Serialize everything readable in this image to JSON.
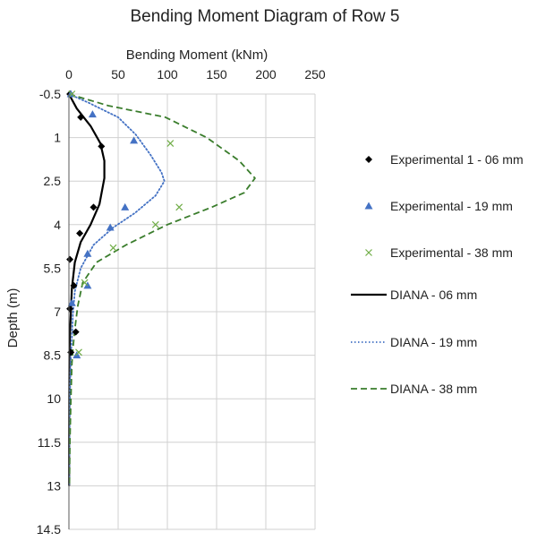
{
  "chart_data": {
    "type": "scatter",
    "title": "Bending Moment Diagram of Row 5",
    "xlabel": "Bending Moment (kNm)",
    "ylabel": "Depth (m)",
    "xlim": [
      0,
      250
    ],
    "ylim": [
      -0.5,
      14.5
    ],
    "y_inverted": true,
    "x_axis_position": "top",
    "x_ticks": [
      0,
      50,
      100,
      150,
      200,
      250
    ],
    "y_ticks": [
      -0.5,
      1,
      2.5,
      4,
      5.5,
      7,
      8.5,
      10,
      11.5,
      13,
      14.5
    ],
    "grid": true,
    "legend_position": "right",
    "series": [
      {
        "name": "Experimental 1 - 06 mm",
        "kind": "markers",
        "marker": "diamond",
        "color": "#000000",
        "points": [
          [
            1,
            -0.5
          ],
          [
            12,
            0.3
          ],
          [
            33,
            1.3
          ],
          [
            25,
            3.4
          ],
          [
            11,
            4.3
          ],
          [
            1,
            5.2
          ],
          [
            5,
            6.1
          ],
          [
            1,
            6.9
          ],
          [
            7,
            7.7
          ],
          [
            2,
            8.4
          ]
        ]
      },
      {
        "name": "Experimental - 19 mm",
        "kind": "markers",
        "marker": "triangle",
        "color": "#4472c4",
        "points": [
          [
            2,
            -0.5
          ],
          [
            24,
            0.2
          ],
          [
            66,
            1.1
          ],
          [
            57,
            3.4
          ],
          [
            42,
            4.1
          ],
          [
            19,
            5.0
          ],
          [
            19,
            6.1
          ],
          [
            3,
            6.7
          ],
          [
            8,
            8.5
          ]
        ]
      },
      {
        "name": "Experimental - 38 mm",
        "kind": "markers",
        "marker": "cross",
        "color": "#70ad47",
        "points": [
          [
            3,
            -0.5
          ],
          [
            103,
            1.2
          ],
          [
            112,
            3.4
          ],
          [
            88,
            4.0
          ],
          [
            45,
            4.8
          ],
          [
            16,
            6.0
          ],
          [
            10,
            8.4
          ]
        ]
      },
      {
        "name": "DIANA - 06 mm",
        "kind": "line",
        "dash": "solid",
        "color": "#000000",
        "points": [
          [
            0,
            -0.5
          ],
          [
            8,
            0.0
          ],
          [
            22,
            0.6
          ],
          [
            32,
            1.2
          ],
          [
            36,
            1.8
          ],
          [
            36,
            2.4
          ],
          [
            31,
            3.3
          ],
          [
            22,
            4.0
          ],
          [
            12,
            4.6
          ],
          [
            6,
            5.3
          ],
          [
            3,
            6.2
          ],
          [
            2,
            7.0
          ],
          [
            1,
            7.8
          ],
          [
            0.5,
            8.5
          ],
          [
            0.3,
            10
          ],
          [
            0.2,
            11.5
          ],
          [
            0.2,
            13
          ]
        ]
      },
      {
        "name": "DIANA - 19 mm",
        "kind": "line",
        "dash": "dotted",
        "color": "#4472c4",
        "points": [
          [
            0,
            -0.5
          ],
          [
            20,
            -0.2
          ],
          [
            50,
            0.3
          ],
          [
            68,
            0.9
          ],
          [
            83,
            1.6
          ],
          [
            94,
            2.2
          ],
          [
            97,
            2.5
          ],
          [
            88,
            3.0
          ],
          [
            67,
            3.6
          ],
          [
            45,
            4.1
          ],
          [
            25,
            4.7
          ],
          [
            12,
            5.5
          ],
          [
            6,
            6.3
          ],
          [
            4,
            7.1
          ],
          [
            3,
            7.9
          ],
          [
            2,
            8.5
          ],
          [
            1,
            10
          ],
          [
            0.5,
            11.5
          ],
          [
            0.3,
            13
          ]
        ]
      },
      {
        "name": "DIANA - 38 mm",
        "kind": "line",
        "dash": "dashed",
        "color": "#3a7d2c",
        "points": [
          [
            0,
            -0.5
          ],
          [
            40,
            -0.1
          ],
          [
            98,
            0.3
          ],
          [
            140,
            1.0
          ],
          [
            173,
            1.8
          ],
          [
            189,
            2.4
          ],
          [
            178,
            2.9
          ],
          [
            145,
            3.4
          ],
          [
            100,
            4.0
          ],
          [
            58,
            4.7
          ],
          [
            28,
            5.3
          ],
          [
            14,
            6.0
          ],
          [
            9,
            6.8
          ],
          [
            6,
            7.6
          ],
          [
            4,
            8.3
          ],
          [
            3,
            8.8
          ],
          [
            2,
            10
          ],
          [
            1,
            11.5
          ],
          [
            0.5,
            13
          ]
        ]
      }
    ]
  }
}
